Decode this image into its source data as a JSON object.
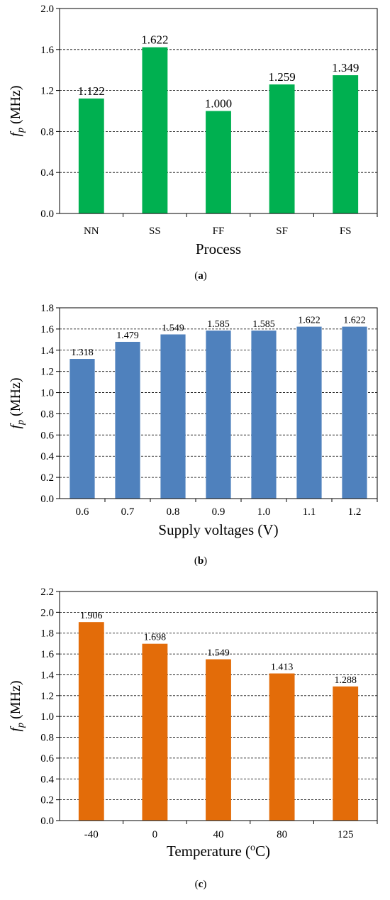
{
  "chart_data": [
    {
      "type": "bar",
      "panel_label": "a",
      "categories": [
        "NN",
        "SS",
        "FF",
        "SF",
        "FS"
      ],
      "values": [
        1.122,
        1.622,
        1.0,
        1.259,
        1.349
      ],
      "value_labels": [
        "1.122",
        "1.622",
        "1.000",
        "1.259",
        "1.349"
      ],
      "ylabel_italic": "f",
      "ylabel_sub": "p",
      "ylabel_unit": " (MHz)",
      "xlabel": "Process",
      "ylim": [
        0,
        2.0
      ],
      "yticks": [
        "0.0",
        "0.4",
        "0.8",
        "1.2",
        "1.6",
        "2.0"
      ],
      "grid": "horizontal-dashed",
      "bar_color": "#00b050"
    },
    {
      "type": "bar",
      "panel_label": "b",
      "categories": [
        "0.6",
        "0.7",
        "0.8",
        "0.9",
        "1.0",
        "1.1",
        "1.2"
      ],
      "values": [
        1.318,
        1.479,
        1.549,
        1.585,
        1.585,
        1.622,
        1.622
      ],
      "value_labels": [
        "1.318",
        "1.479",
        "1.549",
        "1.585",
        "1.585",
        "1.622",
        "1.622"
      ],
      "ylabel_italic": "f",
      "ylabel_sub": "p",
      "ylabel_unit": " (MHz)",
      "xlabel": "Supply voltages (V)",
      "ylim": [
        0,
        1.8
      ],
      "yticks": [
        "0.0",
        "0.2",
        "0.4",
        "0.6",
        "0.8",
        "1.0",
        "1.2",
        "1.4",
        "1.6",
        "1.8"
      ],
      "grid": "horizontal-dashed",
      "bar_color": "#4f81bd"
    },
    {
      "type": "bar",
      "panel_label": "c",
      "categories": [
        "-40",
        "0",
        "40",
        "80",
        "125"
      ],
      "values": [
        1.906,
        1.698,
        1.549,
        1.413,
        1.288
      ],
      "value_labels": [
        "1.906",
        "1.698",
        "1.549",
        "1.413",
        "1.288"
      ],
      "ylabel_italic": "f",
      "ylabel_sub": "p",
      "ylabel_unit": " (MHz)",
      "xlabel_main": "Temperature (",
      "xlabel_sup": "o",
      "xlabel_end": "C)",
      "ylim": [
        0,
        2.2
      ],
      "yticks": [
        "0.0",
        "0.2",
        "0.4",
        "0.6",
        "0.8",
        "1.0",
        "1.2",
        "1.4",
        "1.6",
        "1.8",
        "2.0",
        "2.2"
      ],
      "grid": "horizontal-dashed",
      "bar_color": "#e36c09"
    }
  ]
}
